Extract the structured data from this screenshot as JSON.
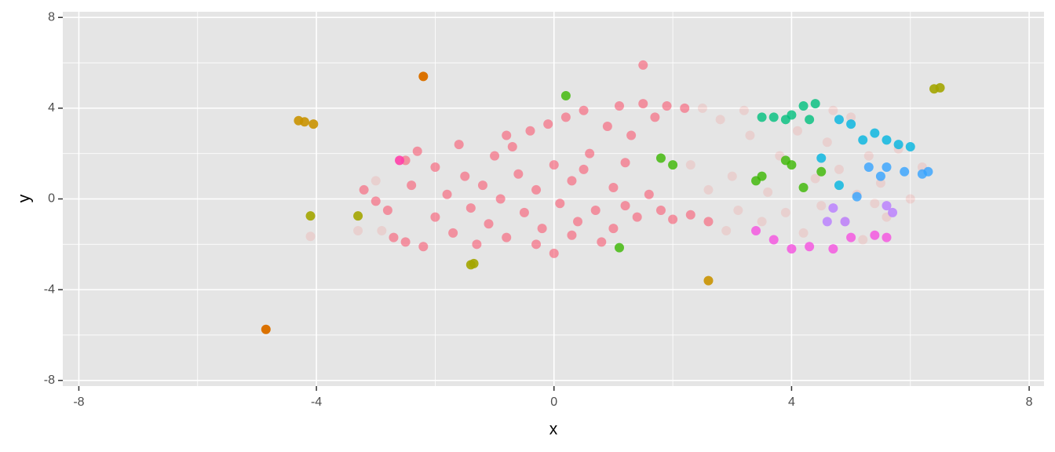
{
  "chart_data": {
    "type": "scatter",
    "xlabel": "x",
    "ylabel": "y",
    "xlim": [
      -8.27,
      8.25
    ],
    "ylim": [
      -8.25,
      8.25
    ],
    "xticks": [
      -8,
      -4,
      0,
      4,
      8
    ],
    "yticks": [
      -8,
      -4,
      0,
      4,
      8
    ],
    "minor_xticks": [
      -6,
      -2,
      2,
      6
    ],
    "minor_yticks": [
      -6,
      -2,
      2,
      6
    ],
    "grid": true,
    "background": "#e5e5e5",
    "series": [
      {
        "color": "#f8766d",
        "alpha": 0.18,
        "x": [
          2.5,
          2.8,
          3.0,
          3.1,
          3.3,
          3.5,
          3.6,
          3.8,
          3.9,
          4.1,
          4.2,
          4.4,
          4.5,
          4.6,
          4.8,
          4.9,
          5.0,
          5.1,
          5.2,
          5.3,
          5.5,
          5.6,
          5.8,
          6.0,
          6.2,
          2.9,
          3.2,
          4.7,
          5.4,
          2.3,
          2.6,
          -3.0,
          -3.3,
          -2.9,
          -4.1
        ],
        "y": [
          4.0,
          3.5,
          1.0,
          -0.5,
          2.8,
          -1.0,
          0.3,
          1.9,
          -0.6,
          3.0,
          -1.5,
          0.9,
          -0.3,
          2.5,
          1.3,
          -1.0,
          3.6,
          0.2,
          -1.8,
          1.9,
          0.7,
          -0.8,
          2.2,
          0.0,
          1.4,
          -1.4,
          3.9,
          3.9,
          -0.2,
          1.5,
          0.4,
          0.8,
          -1.4,
          -1.4,
          -1.65
        ]
      },
      {
        "color": "#f8566f",
        "alpha": 0.6,
        "x": [
          -3.2,
          -3.0,
          -2.8,
          -2.7,
          -2.5,
          -2.4,
          -2.3,
          -2.2,
          -2.0,
          -2.0,
          -1.8,
          -1.7,
          -1.6,
          -1.5,
          -1.4,
          -1.2,
          -1.1,
          -1.0,
          -0.9,
          -0.8,
          -0.7,
          -0.6,
          -0.5,
          -0.4,
          -0.3,
          -0.2,
          -0.1,
          0.0,
          0.0,
          0.1,
          0.2,
          0.3,
          0.4,
          0.5,
          0.6,
          0.7,
          0.8,
          0.9,
          1.0,
          1.1,
          1.2,
          1.3,
          1.4,
          1.5,
          1.6,
          1.7,
          1.8,
          1.9,
          2.0,
          2.2,
          2.3,
          2.6,
          -0.8,
          -1.3,
          0.5,
          1.0,
          -2.5,
          -0.3,
          1.2,
          0.3,
          1.5
        ],
        "y": [
          0.4,
          -0.1,
          -0.5,
          -1.7,
          -1.9,
          0.6,
          2.1,
          -2.1,
          1.4,
          -0.8,
          0.2,
          -1.5,
          2.4,
          1.0,
          -0.4,
          0.6,
          -1.1,
          1.9,
          0.0,
          -1.7,
          2.3,
          1.1,
          -0.6,
          3.0,
          0.4,
          -1.3,
          3.3,
          1.5,
          -2.4,
          -0.2,
          3.6,
          0.8,
          -1.0,
          3.9,
          2.0,
          -0.5,
          -1.9,
          3.2,
          0.5,
          4.1,
          -0.3,
          2.8,
          -0.8,
          4.2,
          0.2,
          3.6,
          -0.5,
          4.1,
          -0.9,
          4.0,
          -0.7,
          -1.0,
          2.8,
          -2.0,
          1.3,
          -1.3,
          1.7,
          -2.0,
          1.6,
          -1.6,
          5.9
        ]
      },
      {
        "color": "#db7200",
        "alpha": 1,
        "x": [
          -2.2,
          -4.85
        ],
        "y": [
          5.4,
          -5.75
        ]
      },
      {
        "color": "#c99200",
        "alpha": 0.9,
        "x": [
          -4.3,
          -4.2,
          -4.05,
          2.6
        ],
        "y": [
          3.45,
          3.4,
          3.3,
          -3.6
        ]
      },
      {
        "color": "#a3a500",
        "alpha": 0.9,
        "x": [
          -4.1,
          -3.3,
          -1.4,
          -1.35,
          6.4,
          6.5
        ],
        "y": [
          -0.75,
          -0.75,
          -2.9,
          -2.85,
          4.85,
          4.9
        ]
      },
      {
        "color": "#39b600",
        "alpha": 0.8,
        "x": [
          0.2,
          1.8,
          1.1,
          3.4,
          4.0,
          3.9,
          4.2,
          4.5,
          3.5,
          2.0
        ],
        "y": [
          4.55,
          1.8,
          -2.15,
          0.8,
          1.5,
          1.7,
          0.5,
          1.2,
          1.0,
          1.5
        ]
      },
      {
        "color": "#00bf7d",
        "alpha": 0.8,
        "x": [
          3.7,
          3.9,
          4.0,
          4.2,
          4.4,
          4.3,
          3.5
        ],
        "y": [
          3.6,
          3.5,
          3.7,
          4.1,
          4.2,
          3.5,
          3.6
        ]
      },
      {
        "color": "#00b4e0",
        "alpha": 0.8,
        "x": [
          4.8,
          5.0,
          5.2,
          5.4,
          5.6,
          5.8,
          6.0,
          4.5,
          4.8
        ],
        "y": [
          3.5,
          3.3,
          2.6,
          2.9,
          2.6,
          2.4,
          2.3,
          1.8,
          0.6
        ]
      },
      {
        "color": "#35a2ff",
        "alpha": 0.8,
        "x": [
          5.3,
          5.6,
          5.9,
          6.2,
          6.3,
          5.1,
          5.5
        ],
        "y": [
          1.4,
          1.4,
          1.2,
          1.1,
          1.2,
          0.1,
          1.0
        ]
      },
      {
        "color": "#b87cff",
        "alpha": 0.8,
        "x": [
          4.7,
          4.9,
          5.6,
          5.7,
          4.6
        ],
        "y": [
          -0.4,
          -1.0,
          -0.3,
          -0.6,
          -1.0
        ]
      },
      {
        "color": "#f550e0",
        "alpha": 0.8,
        "x": [
          3.7,
          4.0,
          4.3,
          4.7,
          5.0,
          5.4,
          5.6,
          3.4
        ],
        "y": [
          -1.8,
          -2.2,
          -2.1,
          -2.2,
          -1.7,
          -1.6,
          -1.7,
          -1.4
        ]
      },
      {
        "color": "#ff3fa8",
        "alpha": 0.9,
        "x": [
          -2.6
        ],
        "y": [
          1.7
        ]
      }
    ]
  }
}
